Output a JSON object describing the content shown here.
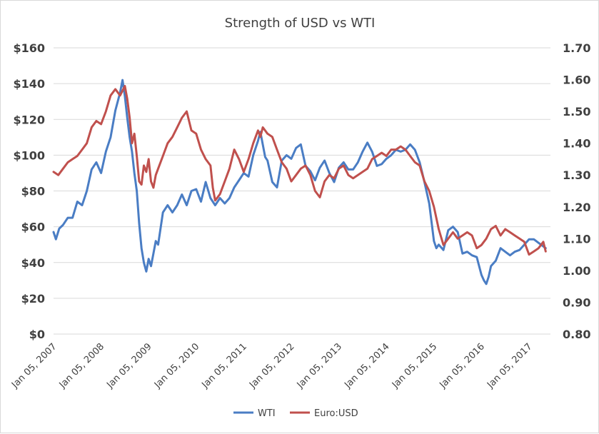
{
  "chart_data": {
    "type": "line",
    "title": "Strength of USD vs WTI",
    "xlabel": "",
    "ylabel": "",
    "y2label": "",
    "ylim": [
      0,
      160
    ],
    "y2lim": [
      0.8,
      1.7
    ],
    "yticks": [
      "$0",
      "$20",
      "$40",
      "$60",
      "$80",
      "$100",
      "$120",
      "$140",
      "$160"
    ],
    "y2ticks": [
      "0.80",
      "0.90",
      "1.00",
      "1.10",
      "1.20",
      "1.30",
      "1.40",
      "1.50",
      "1.60",
      "1.70"
    ],
    "xticks": [
      "Jan 05, 2007",
      "Jan 05, 2008",
      "Jan 05, 2009",
      "Jan 05, 2010",
      "Jan 05, 2011",
      "Jan 05, 2012",
      "Jan 05, 2013",
      "Jan 05, 2014",
      "Jan 05, 2015",
      "Jan 05, 2016",
      "Jan 05, 2017"
    ],
    "xlim": [
      2007.0,
      2017.45
    ],
    "grid": true,
    "legend_position": "bottom-center",
    "series": [
      {
        "name": "WTI",
        "axis": "left",
        "color": "#4a7dc4",
        "x": [
          2007.0,
          2007.05,
          2007.12,
          2007.2,
          2007.3,
          2007.4,
          2007.5,
          2007.6,
          2007.7,
          2007.8,
          2007.9,
          2008.0,
          2008.1,
          2008.2,
          2008.3,
          2008.4,
          2008.45,
          2008.5,
          2008.55,
          2008.6,
          2008.65,
          2008.7,
          2008.75,
          2008.8,
          2008.85,
          2008.9,
          2008.95,
          2009.0,
          2009.05,
          2009.1,
          2009.15,
          2009.2,
          2009.3,
          2009.4,
          2009.5,
          2009.6,
          2009.7,
          2009.8,
          2009.9,
          2010.0,
          2010.1,
          2010.2,
          2010.3,
          2010.4,
          2010.5,
          2010.6,
          2010.7,
          2010.8,
          2010.9,
          2011.0,
          2011.1,
          2011.2,
          2011.3,
          2011.35,
          2011.45,
          2011.5,
          2011.6,
          2011.7,
          2011.8,
          2011.9,
          2012.0,
          2012.1,
          2012.2,
          2012.3,
          2012.4,
          2012.5,
          2012.6,
          2012.7,
          2012.8,
          2012.9,
          2013.0,
          2013.1,
          2013.2,
          2013.3,
          2013.4,
          2013.5,
          2013.6,
          2013.7,
          2013.8,
          2013.9,
          2014.0,
          2014.1,
          2014.2,
          2014.3,
          2014.4,
          2014.5,
          2014.6,
          2014.7,
          2014.8,
          2014.9,
          2015.0,
          2015.05,
          2015.1,
          2015.2,
          2015.3,
          2015.4,
          2015.5,
          2015.6,
          2015.7,
          2015.8,
          2015.9,
          2016.0,
          2016.05,
          2016.1,
          2016.15,
          2016.2,
          2016.3,
          2016.4,
          2016.5,
          2016.6,
          2016.7,
          2016.8,
          2016.9,
          2017.0,
          2017.1,
          2017.2,
          2017.3,
          2017.35
        ],
        "values": [
          57,
          53,
          59,
          61,
          65,
          65,
          74,
          72,
          80,
          92,
          96,
          90,
          102,
          110,
          125,
          135,
          142,
          133,
          121,
          110,
          102,
          90,
          80,
          62,
          48,
          40,
          35,
          42,
          38,
          45,
          52,
          50,
          68,
          72,
          68,
          72,
          78,
          72,
          80,
          81,
          74,
          85,
          76,
          72,
          76,
          73,
          76,
          82,
          86,
          90,
          88,
          100,
          108,
          113,
          99,
          97,
          85,
          82,
          97,
          100,
          98,
          104,
          106,
          94,
          91,
          86,
          93,
          97,
          90,
          85,
          93,
          96,
          92,
          92,
          96,
          102,
          107,
          102,
          94,
          95,
          98,
          100,
          103,
          102,
          103,
          106,
          103,
          96,
          85,
          73,
          52,
          48,
          50,
          47,
          58,
          60,
          57,
          45,
          46,
          44,
          43,
          33,
          30,
          28,
          32,
          38,
          41,
          48,
          46,
          44,
          46,
          47,
          50,
          53,
          53,
          51,
          49,
          48
        ]
      },
      {
        "name": "Euro:USD",
        "axis": "right",
        "color": "#c0504d",
        "x": [
          2007.0,
          2007.1,
          2007.2,
          2007.3,
          2007.4,
          2007.5,
          2007.6,
          2007.7,
          2007.8,
          2007.9,
          2008.0,
          2008.1,
          2008.2,
          2008.3,
          2008.4,
          2008.5,
          2008.55,
          2008.6,
          2008.65,
          2008.7,
          2008.75,
          2008.8,
          2008.85,
          2008.9,
          2008.95,
          2009.0,
          2009.05,
          2009.1,
          2009.15,
          2009.2,
          2009.3,
          2009.4,
          2009.5,
          2009.6,
          2009.7,
          2009.8,
          2009.9,
          2010.0,
          2010.1,
          2010.2,
          2010.3,
          2010.35,
          2010.4,
          2010.5,
          2010.6,
          2010.7,
          2010.8,
          2010.9,
          2011.0,
          2011.1,
          2011.2,
          2011.3,
          2011.35,
          2011.4,
          2011.5,
          2011.6,
          2011.7,
          2011.8,
          2011.9,
          2012.0,
          2012.1,
          2012.2,
          2012.3,
          2012.4,
          2012.5,
          2012.6,
          2012.7,
          2012.8,
          2012.9,
          2013.0,
          2013.1,
          2013.2,
          2013.3,
          2013.4,
          2013.5,
          2013.6,
          2013.7,
          2013.8,
          2013.9,
          2014.0,
          2014.1,
          2014.2,
          2014.3,
          2014.4,
          2014.5,
          2014.6,
          2014.7,
          2014.8,
          2014.9,
          2015.0,
          2015.1,
          2015.2,
          2015.3,
          2015.4,
          2015.5,
          2015.6,
          2015.7,
          2015.8,
          2015.9,
          2016.0,
          2016.1,
          2016.2,
          2016.3,
          2016.4,
          2016.5,
          2016.6,
          2016.7,
          2016.8,
          2016.9,
          2017.0,
          2017.1,
          2017.2,
          2017.3,
          2017.35
        ],
        "values": [
          1.31,
          1.3,
          1.32,
          1.34,
          1.35,
          1.36,
          1.38,
          1.4,
          1.45,
          1.47,
          1.46,
          1.5,
          1.55,
          1.57,
          1.55,
          1.58,
          1.54,
          1.48,
          1.4,
          1.43,
          1.36,
          1.28,
          1.27,
          1.33,
          1.31,
          1.35,
          1.28,
          1.26,
          1.3,
          1.32,
          1.36,
          1.4,
          1.42,
          1.45,
          1.48,
          1.5,
          1.44,
          1.43,
          1.38,
          1.35,
          1.33,
          1.26,
          1.22,
          1.24,
          1.28,
          1.32,
          1.38,
          1.35,
          1.31,
          1.35,
          1.4,
          1.44,
          1.42,
          1.45,
          1.43,
          1.42,
          1.38,
          1.34,
          1.32,
          1.28,
          1.3,
          1.32,
          1.33,
          1.3,
          1.25,
          1.23,
          1.28,
          1.3,
          1.29,
          1.32,
          1.33,
          1.3,
          1.29,
          1.3,
          1.31,
          1.32,
          1.35,
          1.36,
          1.37,
          1.36,
          1.38,
          1.38,
          1.39,
          1.38,
          1.36,
          1.34,
          1.33,
          1.28,
          1.25,
          1.2,
          1.13,
          1.08,
          1.1,
          1.12,
          1.1,
          1.11,
          1.12,
          1.11,
          1.07,
          1.08,
          1.1,
          1.13,
          1.14,
          1.11,
          1.13,
          1.12,
          1.11,
          1.1,
          1.09,
          1.05,
          1.06,
          1.07,
          1.09,
          1.06
        ]
      }
    ]
  }
}
